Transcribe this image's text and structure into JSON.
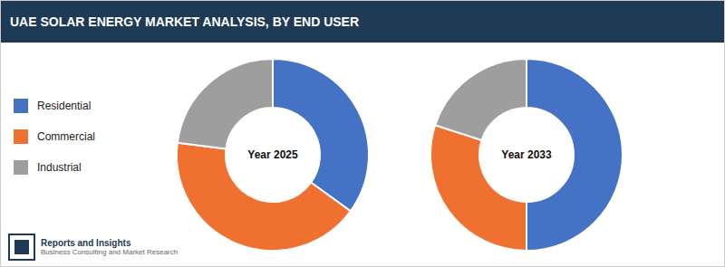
{
  "title": "UAE SOLAR ENERGY MARKET ANALYSIS, BY END USER",
  "annotations": [
    "Reports and Insights",
    "Business Consulting and Market Research"
  ],
  "chart_data": [
    {
      "type": "pie",
      "title": "Year 2025",
      "categories": [
        "Residential",
        "Commercial",
        "Industrial"
      ],
      "values": [
        35,
        42,
        23
      ],
      "colors": [
        "#4472c4",
        "#f07030",
        "#9e9e9e"
      ],
      "legend": "left"
    },
    {
      "type": "pie",
      "title": "Year 2033",
      "categories": [
        "Residential",
        "Commercial",
        "Industrial"
      ],
      "values": [
        50,
        30,
        20
      ],
      "colors": [
        "#4472c4",
        "#f07030",
        "#9e9e9e"
      ],
      "legend": "left"
    }
  ]
}
